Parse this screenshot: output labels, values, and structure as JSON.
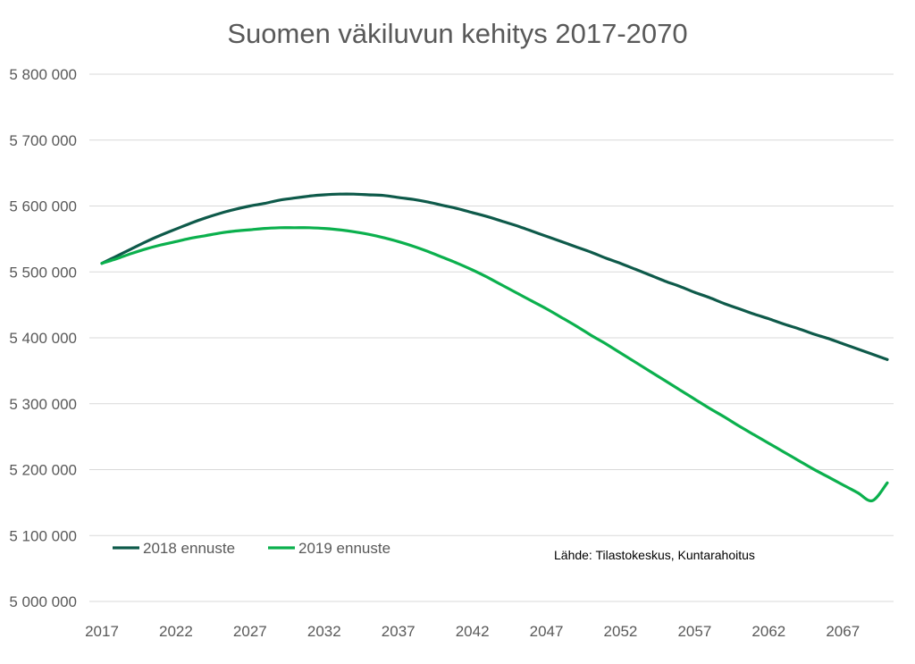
{
  "chart_data": {
    "type": "line",
    "title": "Suomen väkiluvun kehitys 2017-2070",
    "xlabel": "",
    "ylabel": "",
    "x_start": 2017,
    "x_end": 2070,
    "x_ticks": [
      2017,
      2022,
      2027,
      2032,
      2037,
      2042,
      2047,
      2052,
      2057,
      2062,
      2067
    ],
    "y_ticks": [
      5000000,
      5100000,
      5200000,
      5300000,
      5400000,
      5500000,
      5600000,
      5700000,
      5800000
    ],
    "y_tick_labels": [
      "5 000 000",
      "5 100 000",
      "5 200 000",
      "5 300 000",
      "5 400 000",
      "5 500 000",
      "5 600 000",
      "5 700 000",
      "5 800 000"
    ],
    "ylim": [
      5000000,
      5800000
    ],
    "grid": true,
    "legend_position": "bottom-left",
    "source_note": "Lähde: Tilastokeskus, Kuntarahoitus",
    "series": [
      {
        "name": "2018 ennuste",
        "color": "#0e5a4a",
        "x": [
          2017,
          2018,
          2019,
          2020,
          2021,
          2022,
          2023,
          2024,
          2025,
          2026,
          2027,
          2028,
          2029,
          2030,
          2031,
          2032,
          2033,
          2034,
          2035,
          2036,
          2037,
          2038,
          2039,
          2040,
          2041,
          2042,
          2043,
          2044,
          2045,
          2046,
          2047,
          2048,
          2049,
          2050,
          2051,
          2052,
          2053,
          2054,
          2055,
          2056,
          2057,
          2058,
          2059,
          2060,
          2061,
          2062,
          2063,
          2064,
          2065,
          2066,
          2067,
          2068,
          2069,
          2070
        ],
        "values": [
          5513000,
          5524000,
          5535000,
          5546000,
          5556000,
          5565000,
          5574000,
          5582000,
          5589000,
          5595000,
          5600000,
          5604000,
          5609000,
          5612000,
          5615000,
          5617000,
          5618000,
          5618000,
          5617000,
          5616000,
          5613000,
          5610000,
          5606000,
          5601000,
          5596000,
          5590000,
          5584000,
          5577000,
          5570000,
          5562000,
          5554000,
          5546000,
          5538000,
          5530000,
          5521000,
          5513000,
          5504000,
          5495000,
          5486000,
          5478000,
          5469000,
          5461000,
          5452000,
          5444000,
          5436000,
          5429000,
          5421000,
          5414000,
          5406000,
          5399000,
          5391000,
          5383000,
          5375000,
          5367000
        ]
      },
      {
        "name": "2019 ennuste",
        "color": "#0bb04d",
        "x": [
          2017,
          2018,
          2019,
          2020,
          2021,
          2022,
          2023,
          2024,
          2025,
          2026,
          2027,
          2028,
          2029,
          2030,
          2031,
          2032,
          2033,
          2034,
          2035,
          2036,
          2037,
          2038,
          2039,
          2040,
          2041,
          2042,
          2043,
          2044,
          2045,
          2046,
          2047,
          2048,
          2049,
          2050,
          2051,
          2052,
          2053,
          2054,
          2055,
          2056,
          2057,
          2058,
          2059,
          2060,
          2061,
          2062,
          2063,
          2064,
          2065,
          2066,
          2067,
          2068,
          2069,
          2070
        ],
        "values": [
          5513000,
          5520000,
          5528000,
          5535000,
          5541000,
          5546000,
          5551000,
          5555000,
          5559000,
          5562000,
          5564000,
          5566000,
          5567000,
          5567000,
          5567000,
          5566000,
          5564000,
          5561000,
          5557000,
          5552000,
          5546000,
          5539000,
          5531000,
          5522000,
          5513000,
          5503000,
          5492000,
          5480000,
          5468000,
          5456000,
          5444000,
          5431000,
          5418000,
          5404000,
          5391000,
          5377000,
          5363000,
          5349000,
          5335000,
          5321000,
          5307000,
          5293000,
          5280000,
          5266000,
          5253000,
          5240000,
          5227000,
          5214000,
          5201000,
          5189000,
          5177000,
          5165000,
          5153000,
          5180000
        ]
      }
    ]
  }
}
